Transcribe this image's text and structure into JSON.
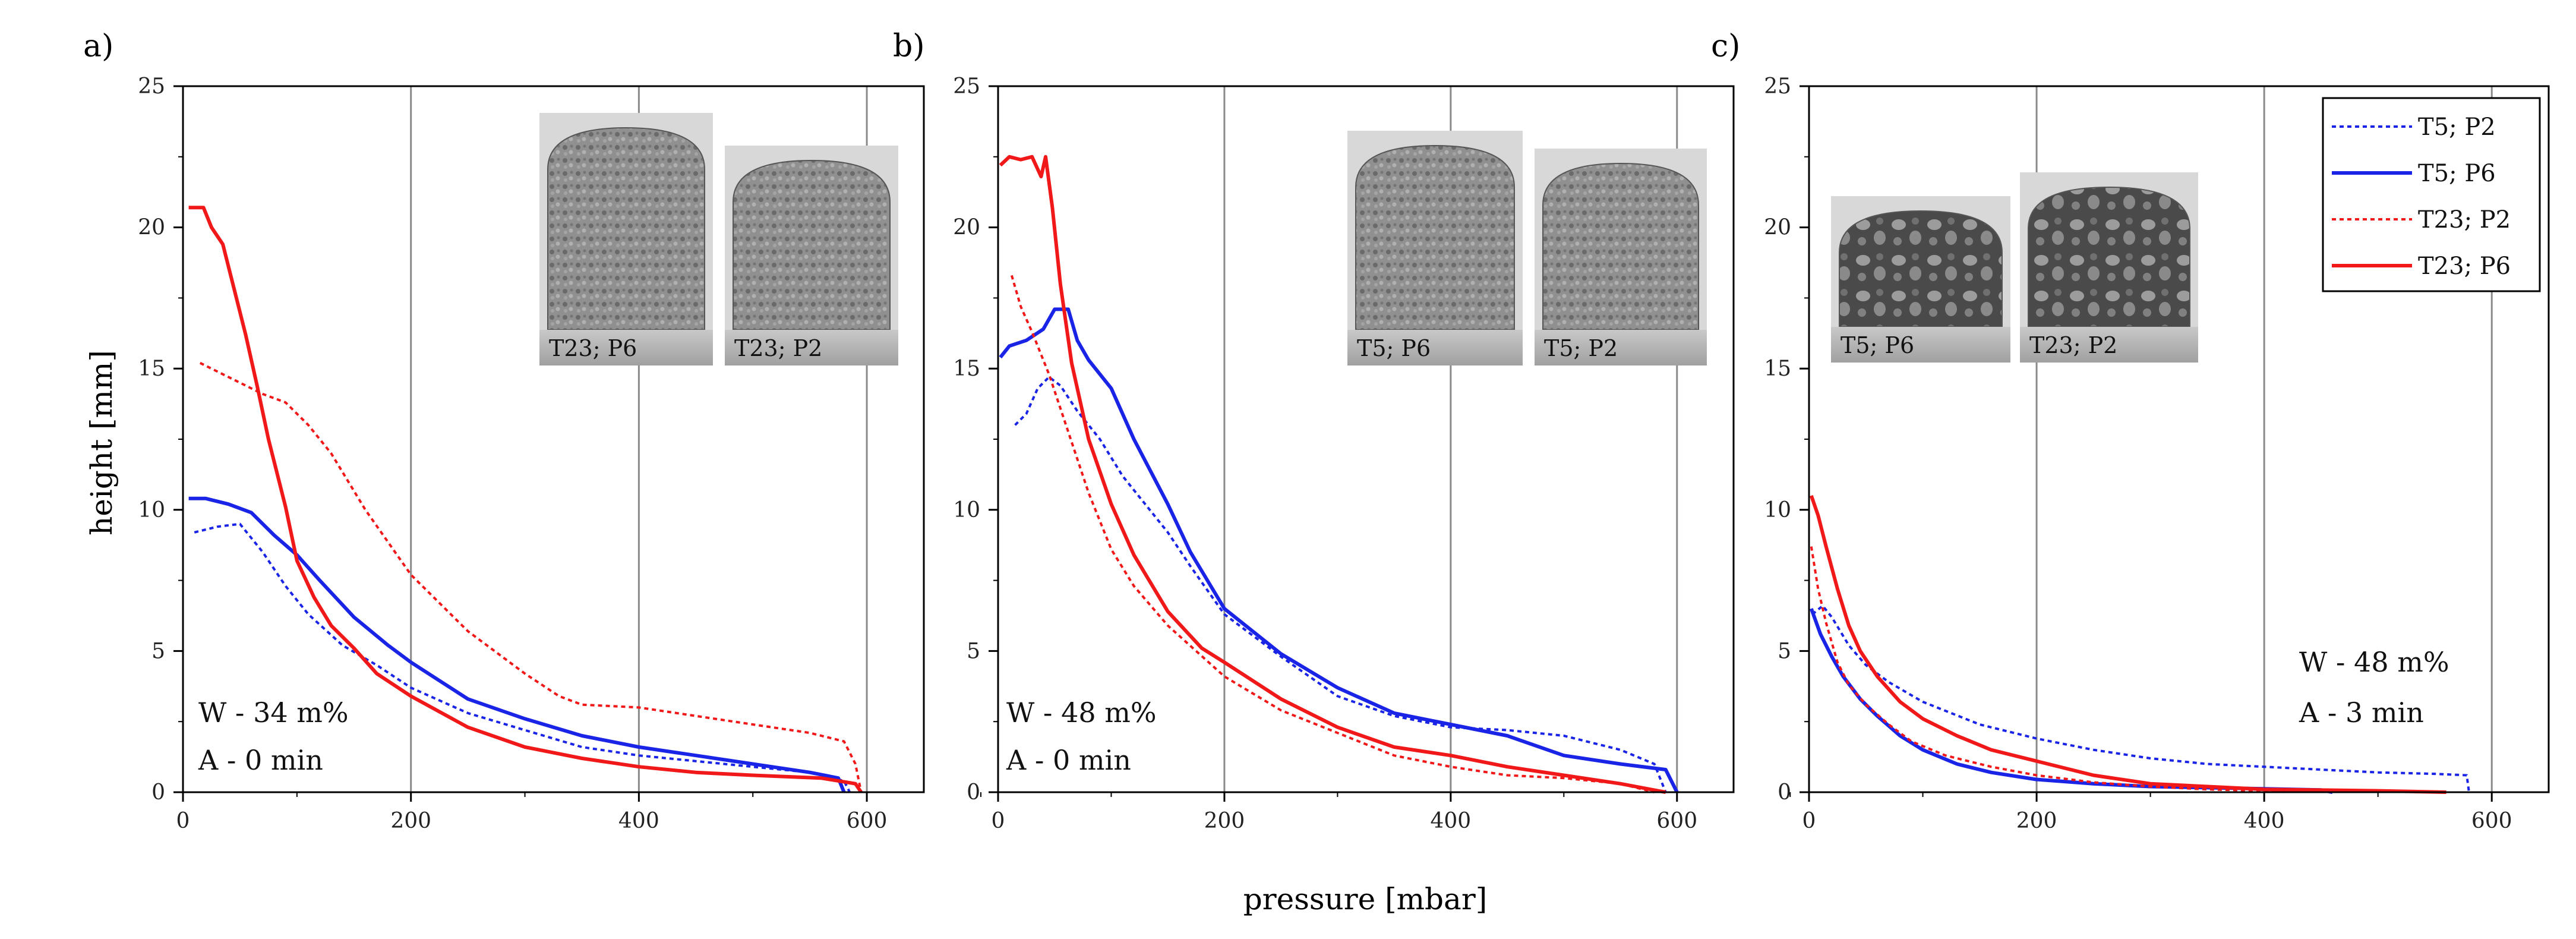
{
  "colors": {
    "blue": "#1a24e6",
    "red": "#f01818",
    "grid": "#8a8a8a",
    "axis": "#000000"
  },
  "figure": {
    "xlabel": "pressure [mbar]",
    "ylabel": "height [mm]"
  },
  "legend": {
    "placement": "top-right of panel c",
    "entries": [
      {
        "label": "T5; P2",
        "color": "#1a24e6",
        "style": "dotted"
      },
      {
        "label": "T5; P6",
        "color": "#1a24e6",
        "style": "solid"
      },
      {
        "label": "T23; P2",
        "color": "#f01818",
        "style": "dotted"
      },
      {
        "label": "T23; P6",
        "color": "#f01818",
        "style": "solid"
      }
    ]
  },
  "chart_data": [
    {
      "panel": "a)",
      "type": "line",
      "xlim": [
        0,
        650
      ],
      "ylim": [
        0,
        25
      ],
      "xticks": [
        0,
        200,
        400,
        600
      ],
      "yticks": [
        0,
        5,
        10,
        15,
        20,
        25
      ],
      "grid": "vertical at x = 200, 400, 600",
      "annotations": [
        "W - 34 m%",
        "A - 0 min"
      ],
      "insets": [
        "T23; P6",
        "T23; P2"
      ],
      "series": [
        {
          "name": "T5; P2",
          "color": "#1a24e6",
          "style": "dotted",
          "points": [
            [
              10,
              9.2
            ],
            [
              30,
              9.4
            ],
            [
              50,
              9.5
            ],
            [
              70,
              8.5
            ],
            [
              90,
              7.3
            ],
            [
              110,
              6.3
            ],
            [
              140,
              5.2
            ],
            [
              170,
              4.5
            ],
            [
              200,
              3.7
            ],
            [
              250,
              2.8
            ],
            [
              300,
              2.2
            ],
            [
              350,
              1.6
            ],
            [
              400,
              1.3
            ],
            [
              450,
              1.1
            ],
            [
              500,
              0.9
            ],
            [
              550,
              0.7
            ],
            [
              580,
              0.4
            ],
            [
              585,
              0
            ]
          ]
        },
        {
          "name": "T5; P6",
          "color": "#1a24e6",
          "style": "solid",
          "points": [
            [
              5,
              10.4
            ],
            [
              20,
              10.4
            ],
            [
              40,
              10.2
            ],
            [
              60,
              9.9
            ],
            [
              80,
              9.1
            ],
            [
              100,
              8.4
            ],
            [
              120,
              7.5
            ],
            [
              150,
              6.2
            ],
            [
              180,
              5.2
            ],
            [
              200,
              4.6
            ],
            [
              250,
              3.3
            ],
            [
              300,
              2.6
            ],
            [
              350,
              2.0
            ],
            [
              400,
              1.6
            ],
            [
              450,
              1.3
            ],
            [
              500,
              1.0
            ],
            [
              550,
              0.7
            ],
            [
              575,
              0.5
            ],
            [
              580,
              0
            ]
          ]
        },
        {
          "name": "T23; P2",
          "color": "#f01818",
          "style": "dotted",
          "points": [
            [
              15,
              15.2
            ],
            [
              30,
              14.9
            ],
            [
              50,
              14.5
            ],
            [
              70,
              14.1
            ],
            [
              90,
              13.8
            ],
            [
              110,
              13.0
            ],
            [
              130,
              12.0
            ],
            [
              160,
              10.0
            ],
            [
              200,
              7.7
            ],
            [
              250,
              5.7
            ],
            [
              300,
              4.2
            ],
            [
              330,
              3.4
            ],
            [
              350,
              3.1
            ],
            [
              400,
              3.0
            ],
            [
              450,
              2.7
            ],
            [
              500,
              2.4
            ],
            [
              550,
              2.1
            ],
            [
              580,
              1.8
            ],
            [
              590,
              1.0
            ],
            [
              595,
              0
            ]
          ]
        },
        {
          "name": "T23; P6",
          "color": "#f01818",
          "style": "solid",
          "points": [
            [
              5,
              20.7
            ],
            [
              18,
              20.7
            ],
            [
              25,
              20.0
            ],
            [
              35,
              19.4
            ],
            [
              45,
              17.8
            ],
            [
              55,
              16.2
            ],
            [
              65,
              14.4
            ],
            [
              75,
              12.5
            ],
            [
              90,
              10.1
            ],
            [
              100,
              8.2
            ],
            [
              115,
              6.9
            ],
            [
              130,
              5.9
            ],
            [
              150,
              5.1
            ],
            [
              170,
              4.2
            ],
            [
              200,
              3.4
            ],
            [
              250,
              2.3
            ],
            [
              300,
              1.6
            ],
            [
              350,
              1.2
            ],
            [
              400,
              0.9
            ],
            [
              450,
              0.7
            ],
            [
              500,
              0.6
            ],
            [
              560,
              0.5
            ],
            [
              590,
              0.3
            ],
            [
              595,
              0
            ]
          ]
        }
      ]
    },
    {
      "panel": "b)",
      "type": "line",
      "xlim": [
        0,
        650
      ],
      "ylim": [
        0,
        25
      ],
      "xticks": [
        0,
        200,
        400,
        600
      ],
      "yticks": [
        0,
        5,
        10,
        15,
        20,
        25
      ],
      "grid": "vertical at x = 200, 400, 600",
      "annotations": [
        "W - 48 m%",
        "A - 0 min"
      ],
      "insets": [
        "T5; P6",
        "T5; P2"
      ],
      "series": [
        {
          "name": "T5; P2",
          "color": "#1a24e6",
          "style": "dotted",
          "points": [
            [
              15,
              13.0
            ],
            [
              25,
              13.4
            ],
            [
              35,
              14.3
            ],
            [
              45,
              14.7
            ],
            [
              55,
              14.4
            ],
            [
              70,
              13.5
            ],
            [
              90,
              12.5
            ],
            [
              110,
              11.2
            ],
            [
              130,
              10.2
            ],
            [
              150,
              9.2
            ],
            [
              170,
              8.0
            ],
            [
              200,
              6.3
            ],
            [
              250,
              4.8
            ],
            [
              300,
              3.4
            ],
            [
              350,
              2.7
            ],
            [
              400,
              2.3
            ],
            [
              450,
              2.2
            ],
            [
              500,
              2.0
            ],
            [
              550,
              1.5
            ],
            [
              580,
              1.0
            ],
            [
              590,
              0
            ]
          ]
        },
        {
          "name": "T5; P6",
          "color": "#1a24e6",
          "style": "solid",
          "points": [
            [
              2,
              15.4
            ],
            [
              10,
              15.8
            ],
            [
              25,
              16.0
            ],
            [
              40,
              16.4
            ],
            [
              50,
              17.1
            ],
            [
              62,
              17.1
            ],
            [
              70,
              16.0
            ],
            [
              80,
              15.3
            ],
            [
              100,
              14.3
            ],
            [
              120,
              12.5
            ],
            [
              150,
              10.2
            ],
            [
              170,
              8.5
            ],
            [
              200,
              6.5
            ],
            [
              250,
              4.9
            ],
            [
              300,
              3.7
            ],
            [
              350,
              2.8
            ],
            [
              400,
              2.4
            ],
            [
              450,
              2.0
            ],
            [
              500,
              1.3
            ],
            [
              550,
              1.0
            ],
            [
              590,
              0.8
            ],
            [
              600,
              0
            ]
          ]
        },
        {
          "name": "T23; P2",
          "color": "#f01818",
          "style": "dotted",
          "points": [
            [
              12,
              18.3
            ],
            [
              20,
              17.2
            ],
            [
              30,
              16.3
            ],
            [
              45,
              14.8
            ],
            [
              60,
              13.0
            ],
            [
              80,
              10.6
            ],
            [
              100,
              8.6
            ],
            [
              120,
              7.3
            ],
            [
              150,
              5.9
            ],
            [
              200,
              4.1
            ],
            [
              250,
              2.9
            ],
            [
              300,
              2.1
            ],
            [
              350,
              1.3
            ],
            [
              400,
              0.9
            ],
            [
              450,
              0.6
            ],
            [
              500,
              0.5
            ],
            [
              550,
              0.3
            ],
            [
              580,
              0
            ]
          ]
        },
        {
          "name": "T23; P6",
          "color": "#f01818",
          "style": "solid",
          "points": [
            [
              2,
              22.2
            ],
            [
              10,
              22.5
            ],
            [
              20,
              22.4
            ],
            [
              30,
              22.5
            ],
            [
              38,
              21.8
            ],
            [
              42,
              22.5
            ],
            [
              48,
              20.7
            ],
            [
              55,
              18.0
            ],
            [
              65,
              15.2
            ],
            [
              80,
              12.5
            ],
            [
              100,
              10.2
            ],
            [
              120,
              8.4
            ],
            [
              150,
              6.4
            ],
            [
              180,
              5.1
            ],
            [
              200,
              4.6
            ],
            [
              250,
              3.3
            ],
            [
              300,
              2.3
            ],
            [
              350,
              1.6
            ],
            [
              400,
              1.3
            ],
            [
              450,
              0.9
            ],
            [
              500,
              0.6
            ],
            [
              550,
              0.3
            ],
            [
              590,
              0
            ]
          ]
        }
      ]
    },
    {
      "panel": "c)",
      "type": "line",
      "xlim": [
        0,
        650
      ],
      "ylim": [
        0,
        25
      ],
      "xticks": [
        0,
        200,
        400,
        600
      ],
      "yticks": [
        0,
        5,
        10,
        15,
        20,
        25
      ],
      "grid": "vertical at x = 200, 400, 600",
      "annotations": [
        "W - 48 m%",
        "A - 3 min"
      ],
      "insets": [
        "T5; P6",
        "T23; P2"
      ],
      "series": [
        {
          "name": "T5; P2",
          "color": "#1a24e6",
          "style": "dotted",
          "points": [
            [
              3,
              6.3
            ],
            [
              12,
              6.6
            ],
            [
              20,
              6.2
            ],
            [
              35,
              5.2
            ],
            [
              50,
              4.5
            ],
            [
              70,
              3.9
            ],
            [
              100,
              3.2
            ],
            [
              150,
              2.4
            ],
            [
              200,
              1.9
            ],
            [
              250,
              1.5
            ],
            [
              300,
              1.2
            ],
            [
              350,
              1.0
            ],
            [
              400,
              0.9
            ],
            [
              450,
              0.8
            ],
            [
              500,
              0.7
            ],
            [
              550,
              0.65
            ],
            [
              578,
              0.6
            ],
            [
              580,
              0
            ]
          ]
        },
        {
          "name": "T5; P6",
          "color": "#1a24e6",
          "style": "solid",
          "points": [
            [
              2,
              6.5
            ],
            [
              10,
              5.6
            ],
            [
              20,
              4.8
            ],
            [
              30,
              4.1
            ],
            [
              45,
              3.3
            ],
            [
              60,
              2.7
            ],
            [
              80,
              2.0
            ],
            [
              100,
              1.5
            ],
            [
              130,
              1.0
            ],
            [
              160,
              0.7
            ],
            [
              200,
              0.45
            ],
            [
              250,
              0.3
            ],
            [
              300,
              0.2
            ],
            [
              400,
              0.12
            ],
            [
              450,
              0.08
            ],
            [
              460,
              0
            ]
          ]
        },
        {
          "name": "T23; P2",
          "color": "#f01818",
          "style": "dotted",
          "points": [
            [
              2,
              8.7
            ],
            [
              8,
              7.2
            ],
            [
              15,
              6.0
            ],
            [
              25,
              4.6
            ],
            [
              35,
              3.8
            ],
            [
              50,
              3.1
            ],
            [
              70,
              2.4
            ],
            [
              90,
              1.8
            ],
            [
              120,
              1.3
            ],
            [
              160,
              0.9
            ],
            [
              200,
              0.6
            ],
            [
              250,
              0.35
            ],
            [
              300,
              0.2
            ],
            [
              350,
              0.1
            ],
            [
              400,
              0.05
            ],
            [
              420,
              0
            ]
          ]
        },
        {
          "name": "T23; P6",
          "color": "#f01818",
          "style": "solid",
          "points": [
            [
              2,
              10.5
            ],
            [
              8,
              9.8
            ],
            [
              15,
              8.7
            ],
            [
              25,
              7.2
            ],
            [
              35,
              5.9
            ],
            [
              45,
              5.0
            ],
            [
              60,
              4.1
            ],
            [
              80,
              3.2
            ],
            [
              100,
              2.6
            ],
            [
              130,
              2.0
            ],
            [
              160,
              1.5
            ],
            [
              200,
              1.1
            ],
            [
              250,
              0.6
            ],
            [
              300,
              0.3
            ],
            [
              400,
              0.1
            ],
            [
              500,
              0.05
            ],
            [
              560,
              0
            ]
          ]
        }
      ]
    }
  ]
}
